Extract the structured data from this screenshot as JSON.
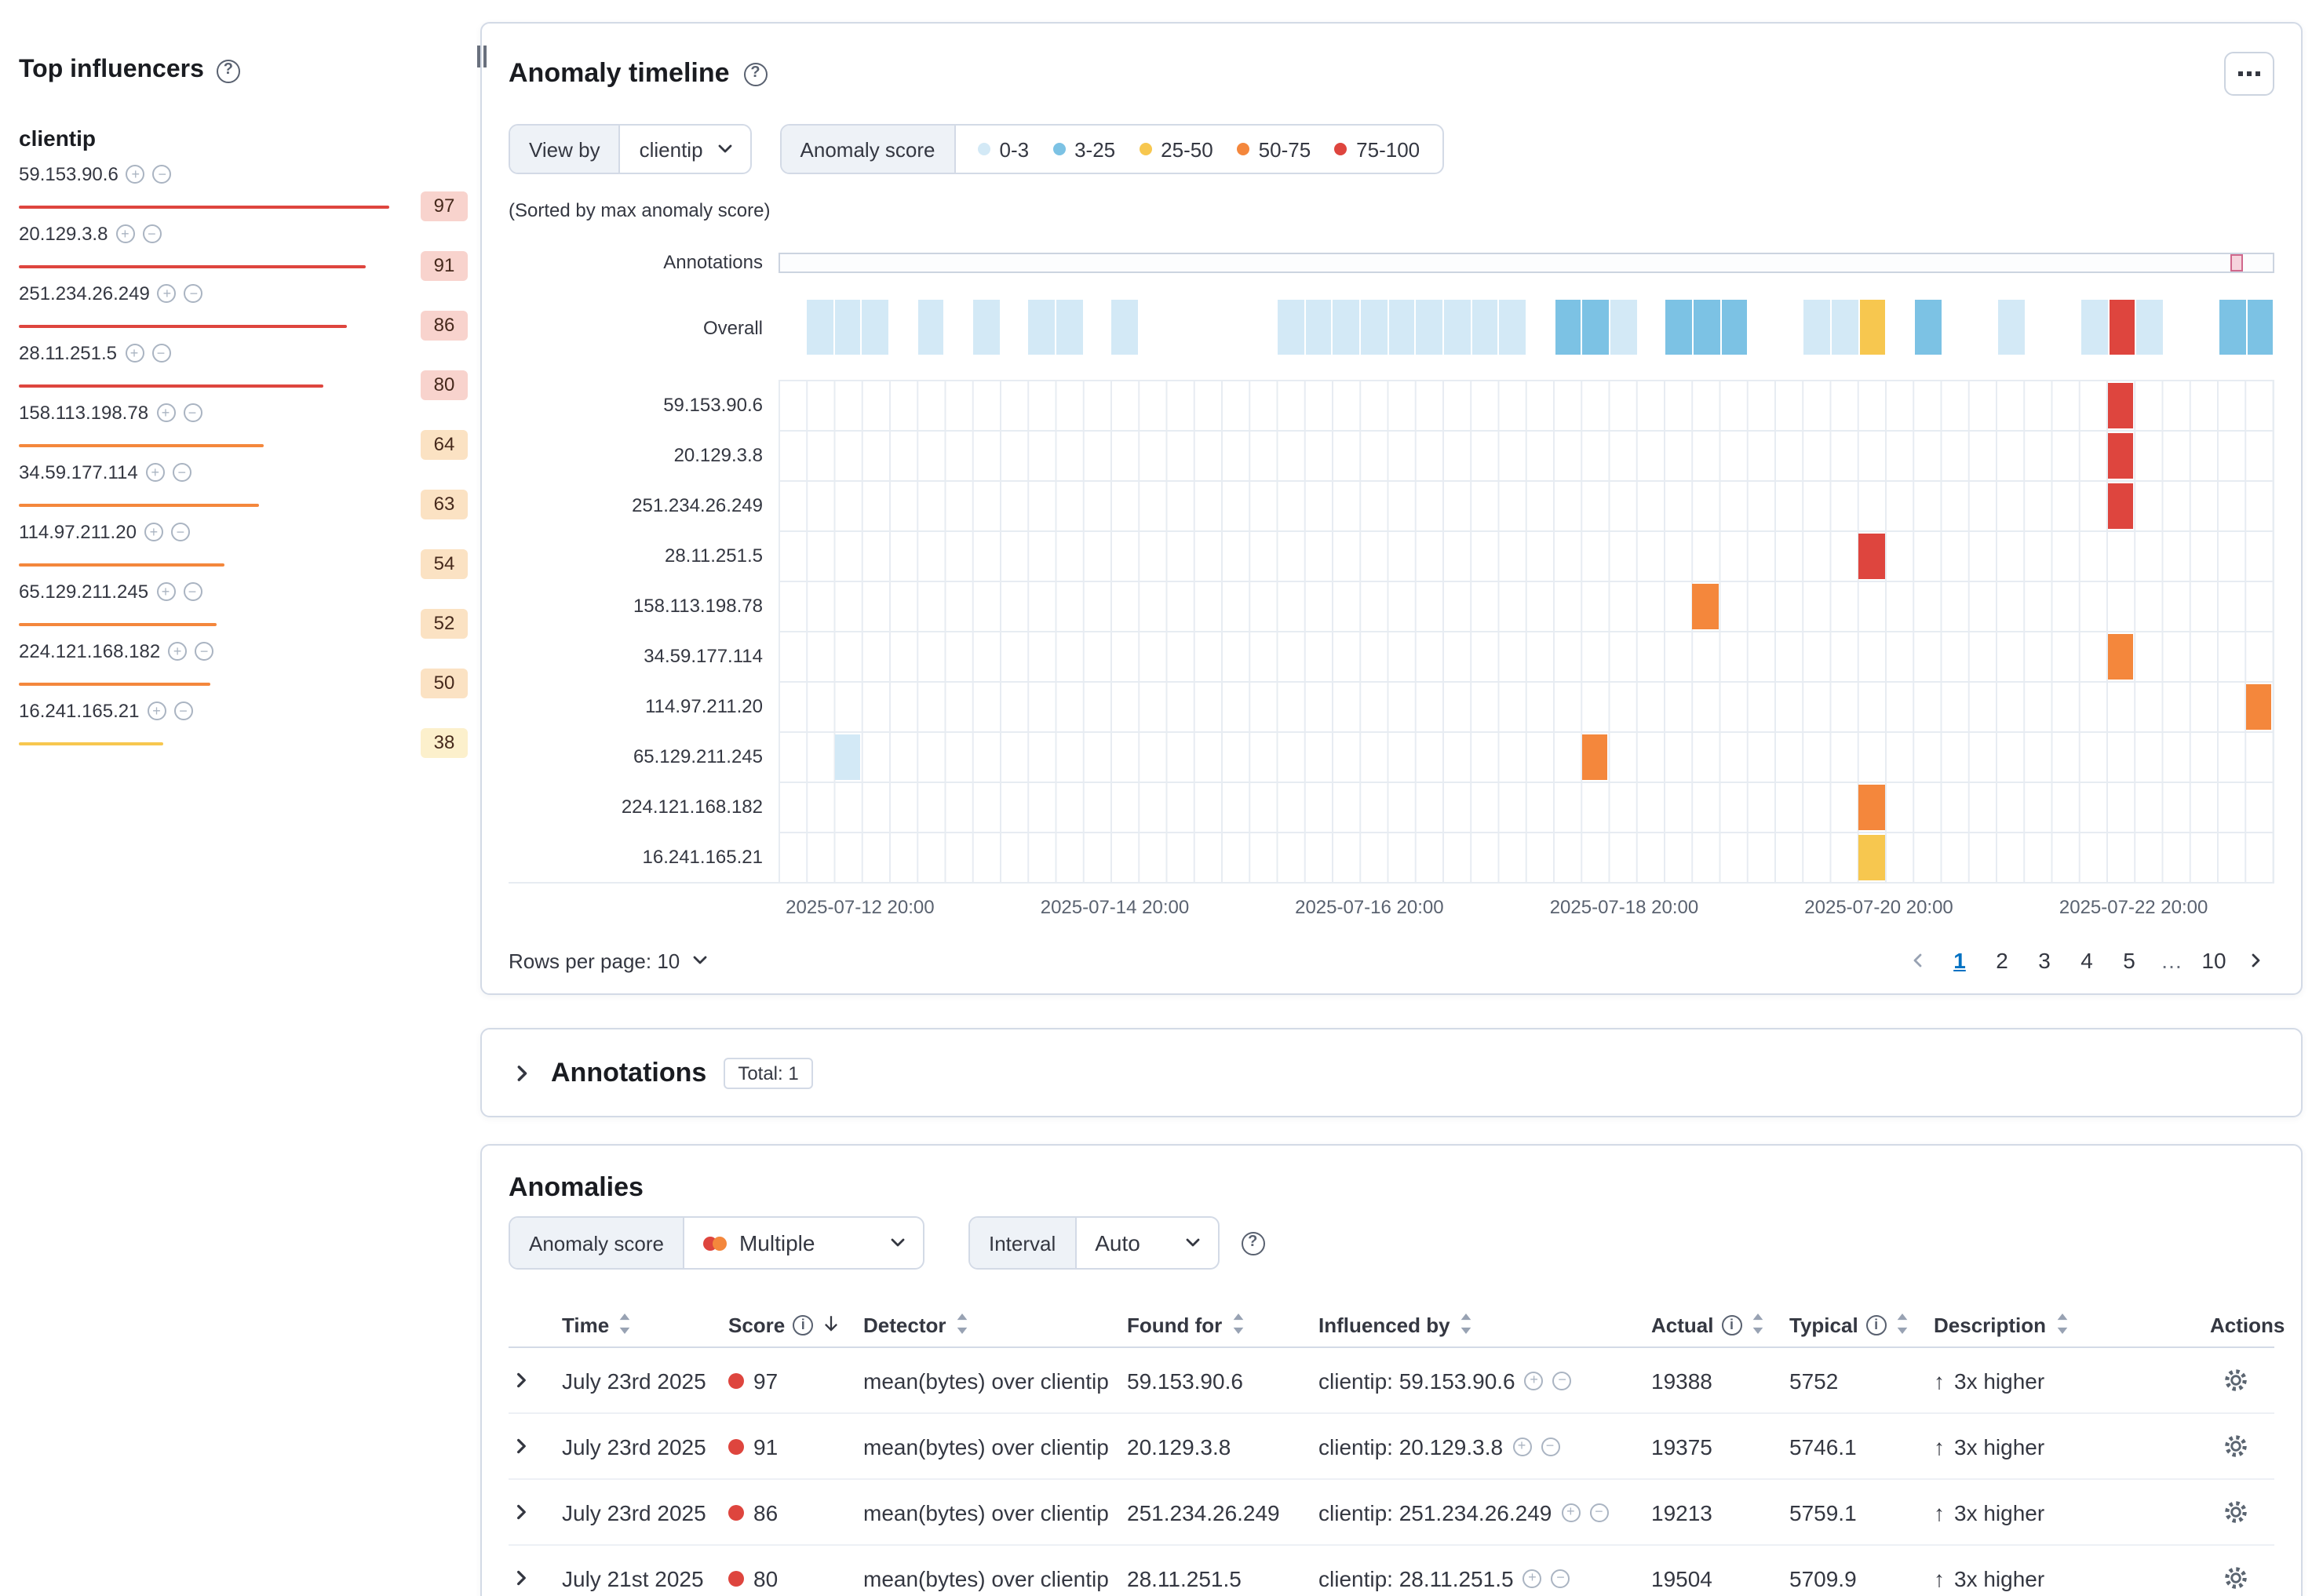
{
  "colors": {
    "sev_low": "#d3e9f6",
    "sev_warning": "#7cc2e4",
    "sev_minor": "#f7c74f",
    "sev_major": "#f4873c",
    "sev_critical": "#de453e",
    "badge_critical": "#f8d3cd",
    "badge_major": "#fbe2c3",
    "badge_minor": "#fcf0cc",
    "accent_blue": "#0071c2"
  },
  "top_influencers": {
    "title": "Top influencers",
    "field": "clientip",
    "items": [
      {
        "ip": "59.153.90.6",
        "score": 97,
        "severity": "critical"
      },
      {
        "ip": "20.129.3.8",
        "score": 91,
        "severity": "critical"
      },
      {
        "ip": "251.234.26.249",
        "score": 86,
        "severity": "critical"
      },
      {
        "ip": "28.11.251.5",
        "score": 80,
        "severity": "critical"
      },
      {
        "ip": "158.113.198.78",
        "score": 64,
        "severity": "major"
      },
      {
        "ip": "34.59.177.114",
        "score": 63,
        "severity": "major"
      },
      {
        "ip": "114.97.211.20",
        "score": 54,
        "severity": "major"
      },
      {
        "ip": "65.129.211.245",
        "score": 52,
        "severity": "major"
      },
      {
        "ip": "224.121.168.182",
        "score": 50,
        "severity": "major"
      },
      {
        "ip": "16.241.165.21",
        "score": 38,
        "severity": "minor"
      }
    ]
  },
  "timeline": {
    "title": "Anomaly timeline",
    "view_by_label": "View by",
    "view_by_value": "clientip",
    "legend_label": "Anomaly score",
    "legend": [
      {
        "label": "0-3",
        "severity": "low"
      },
      {
        "label": "3-25",
        "severity": "warning"
      },
      {
        "label": "25-50",
        "severity": "minor"
      },
      {
        "label": "50-75",
        "severity": "major"
      },
      {
        "label": "75-100",
        "severity": "critical"
      }
    ],
    "sorted_note": "(Sorted by max anomaly score)",
    "annotations_label": "Annotations",
    "overall_label": "Overall",
    "buckets": 54,
    "overall_cells": [
      {
        "b": 1,
        "s": "low"
      },
      {
        "b": 2,
        "s": "low"
      },
      {
        "b": 3,
        "s": "low"
      },
      {
        "b": 5,
        "s": "low"
      },
      {
        "b": 7,
        "s": "low"
      },
      {
        "b": 9,
        "s": "low"
      },
      {
        "b": 10,
        "s": "low"
      },
      {
        "b": 12,
        "s": "low"
      },
      {
        "b": 18,
        "s": "low"
      },
      {
        "b": 19,
        "s": "low"
      },
      {
        "b": 20,
        "s": "low"
      },
      {
        "b": 21,
        "s": "low"
      },
      {
        "b": 22,
        "s": "low"
      },
      {
        "b": 23,
        "s": "low"
      },
      {
        "b": 24,
        "s": "low"
      },
      {
        "b": 25,
        "s": "low"
      },
      {
        "b": 26,
        "s": "low"
      },
      {
        "b": 28,
        "s": "warning"
      },
      {
        "b": 29,
        "s": "warning"
      },
      {
        "b": 30,
        "s": "low"
      },
      {
        "b": 32,
        "s": "warning"
      },
      {
        "b": 33,
        "s": "warning"
      },
      {
        "b": 34,
        "s": "warning"
      },
      {
        "b": 37,
        "s": "low"
      },
      {
        "b": 38,
        "s": "low"
      },
      {
        "b": 39,
        "s": "minor"
      },
      {
        "b": 41,
        "s": "warning"
      },
      {
        "b": 44,
        "s": "low"
      },
      {
        "b": 47,
        "s": "low"
      },
      {
        "b": 48,
        "s": "critical"
      },
      {
        "b": 49,
        "s": "low"
      },
      {
        "b": 52,
        "s": "warning"
      },
      {
        "b": 53,
        "s": "warning"
      }
    ],
    "lanes": [
      {
        "label": "59.153.90.6",
        "cells": [
          {
            "b": 48,
            "s": "critical"
          }
        ]
      },
      {
        "label": "20.129.3.8",
        "cells": [
          {
            "b": 48,
            "s": "critical"
          }
        ]
      },
      {
        "label": "251.234.26.249",
        "cells": [
          {
            "b": 48,
            "s": "critical"
          }
        ]
      },
      {
        "label": "28.11.251.5",
        "cells": [
          {
            "b": 39,
            "s": "critical"
          }
        ]
      },
      {
        "label": "158.113.198.78",
        "cells": [
          {
            "b": 33,
            "s": "major"
          }
        ]
      },
      {
        "label": "34.59.177.114",
        "cells": [
          {
            "b": 48,
            "s": "major"
          }
        ]
      },
      {
        "label": "114.97.211.20",
        "cells": [
          {
            "b": 53,
            "s": "major"
          }
        ]
      },
      {
        "label": "65.129.211.245",
        "cells": [
          {
            "b": 2,
            "s": "low"
          },
          {
            "b": 29,
            "s": "major"
          }
        ]
      },
      {
        "label": "224.121.168.182",
        "cells": [
          {
            "b": 39,
            "s": "major"
          }
        ]
      },
      {
        "label": "16.241.165.21",
        "cells": [
          {
            "b": 39,
            "s": "minor"
          }
        ]
      }
    ],
    "x_ticks": [
      "2025-07-12 20:00",
      "2025-07-14 20:00",
      "2025-07-16 20:00",
      "2025-07-18 20:00",
      "2025-07-20 20:00",
      "2025-07-22 20:00"
    ],
    "annotation_marker_pos": 97.2,
    "rows_per_page_label": "Rows per page: 10",
    "pagination": {
      "pages": [
        "1",
        "2",
        "3",
        "4",
        "5",
        "…",
        "10"
      ],
      "active": "1"
    }
  },
  "annotations_panel": {
    "title": "Annotations",
    "total_badge": "Total: 1"
  },
  "anomalies": {
    "title": "Anomalies",
    "score_label": "Anomaly score",
    "score_value": "Multiple",
    "interval_label": "Interval",
    "interval_value": "Auto",
    "table": {
      "columns": [
        {
          "label": "Time",
          "sortable": true
        },
        {
          "label": "Score",
          "info": true,
          "sorted": "desc"
        },
        {
          "label": "Detector",
          "sortable": true
        },
        {
          "label": "Found for",
          "sortable": true
        },
        {
          "label": "Influenced by",
          "sortable": true
        },
        {
          "label": "Actual",
          "info": true,
          "sortable": true
        },
        {
          "label": "Typical",
          "info": true,
          "sortable": true
        },
        {
          "label": "Description",
          "sortable": true
        },
        {
          "label": "Actions"
        }
      ],
      "rows": [
        {
          "time": "July 23rd 2025",
          "score": "97",
          "severity": "critical",
          "detector": "mean(bytes) over clientip",
          "found_for": "59.153.90.6",
          "influenced_by": "clientip: 59.153.90.6",
          "actual": "19388",
          "typical": "5752",
          "description": "3x higher"
        },
        {
          "time": "July 23rd 2025",
          "score": "91",
          "severity": "critical",
          "detector": "mean(bytes) over clientip",
          "found_for": "20.129.3.8",
          "influenced_by": "clientip: 20.129.3.8",
          "actual": "19375",
          "typical": "5746.1",
          "description": "3x higher"
        },
        {
          "time": "July 23rd 2025",
          "score": "86",
          "severity": "critical",
          "detector": "mean(bytes) over clientip",
          "found_for": "251.234.26.249",
          "influenced_by": "clientip: 251.234.26.249",
          "actual": "19213",
          "typical": "5759.1",
          "description": "3x higher"
        },
        {
          "time": "July 21st 2025",
          "score": "80",
          "severity": "critical",
          "detector": "mean(bytes) over clientip",
          "found_for": "28.11.251.5",
          "influenced_by": "clientip: 28.11.251.5",
          "actual": "19504",
          "typical": "5709.9",
          "description": "3x higher"
        }
      ]
    }
  }
}
